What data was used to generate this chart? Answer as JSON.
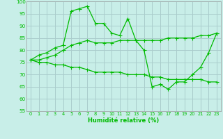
{
  "xlabel": "Humidité relative (%)",
  "background_color": "#c8eee8",
  "grid_color": "#aacccc",
  "line_color": "#00bb00",
  "xlim": [
    -0.5,
    23.5
  ],
  "ylim": [
    55,
    100
  ],
  "xticks": [
    0,
    1,
    2,
    3,
    4,
    5,
    6,
    7,
    8,
    9,
    10,
    11,
    12,
    13,
    14,
    15,
    16,
    17,
    18,
    19,
    20,
    21,
    22,
    23
  ],
  "yticks": [
    55,
    60,
    65,
    70,
    75,
    80,
    85,
    90,
    95,
    100
  ],
  "line1_x": [
    0,
    1,
    2,
    3,
    4,
    5,
    6,
    7,
    8,
    9,
    10,
    11,
    12,
    13,
    14,
    15,
    16,
    17,
    18,
    19,
    20,
    21,
    22,
    23
  ],
  "line1_y": [
    76,
    78,
    79,
    81,
    82,
    96,
    97,
    98,
    91,
    91,
    87,
    86,
    93,
    84,
    80,
    65,
    66,
    64,
    67,
    67,
    70,
    73,
    79,
    87
  ],
  "line2_x": [
    0,
    1,
    2,
    3,
    4,
    5,
    6,
    7,
    8,
    9,
    10,
    11,
    12,
    13,
    14,
    15,
    16,
    17,
    18,
    19,
    20,
    21,
    22,
    23
  ],
  "line2_y": [
    76,
    76,
    77,
    78,
    80,
    82,
    83,
    84,
    83,
    83,
    83,
    84,
    84,
    84,
    84,
    84,
    84,
    85,
    85,
    85,
    85,
    86,
    86,
    87
  ],
  "line3_x": [
    0,
    1,
    2,
    3,
    4,
    5,
    6,
    7,
    8,
    9,
    10,
    11,
    12,
    13,
    14,
    15,
    16,
    17,
    18,
    19,
    20,
    21,
    22,
    23
  ],
  "line3_y": [
    76,
    75,
    75,
    74,
    74,
    73,
    73,
    72,
    71,
    71,
    71,
    71,
    70,
    70,
    70,
    69,
    69,
    68,
    68,
    68,
    68,
    68,
    67,
    67
  ]
}
